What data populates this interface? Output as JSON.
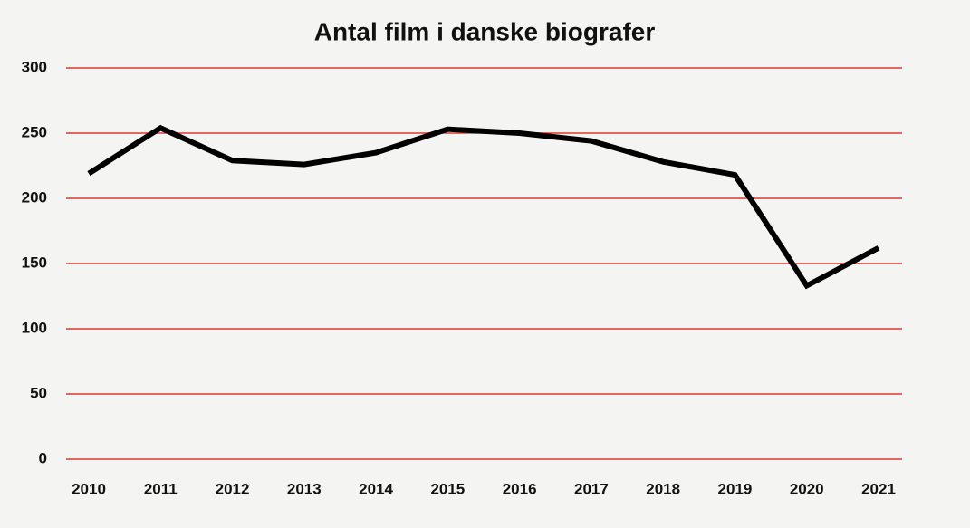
{
  "chart_data": {
    "type": "line",
    "title": "Antal film i danske biografer",
    "categories": [
      "2010",
      "2011",
      "2012",
      "2013",
      "2014",
      "2015",
      "2016",
      "2017",
      "2018",
      "2019",
      "2020",
      "2021"
    ],
    "values": [
      219,
      254,
      229,
      226,
      235,
      253,
      250,
      244,
      228,
      218,
      133,
      162
    ],
    "color": "#000000",
    "grid_color": "#e0392f",
    "ylim": [
      0,
      300
    ],
    "yticks": [
      0,
      50,
      100,
      150,
      200,
      250,
      300
    ],
    "grid": true
  }
}
